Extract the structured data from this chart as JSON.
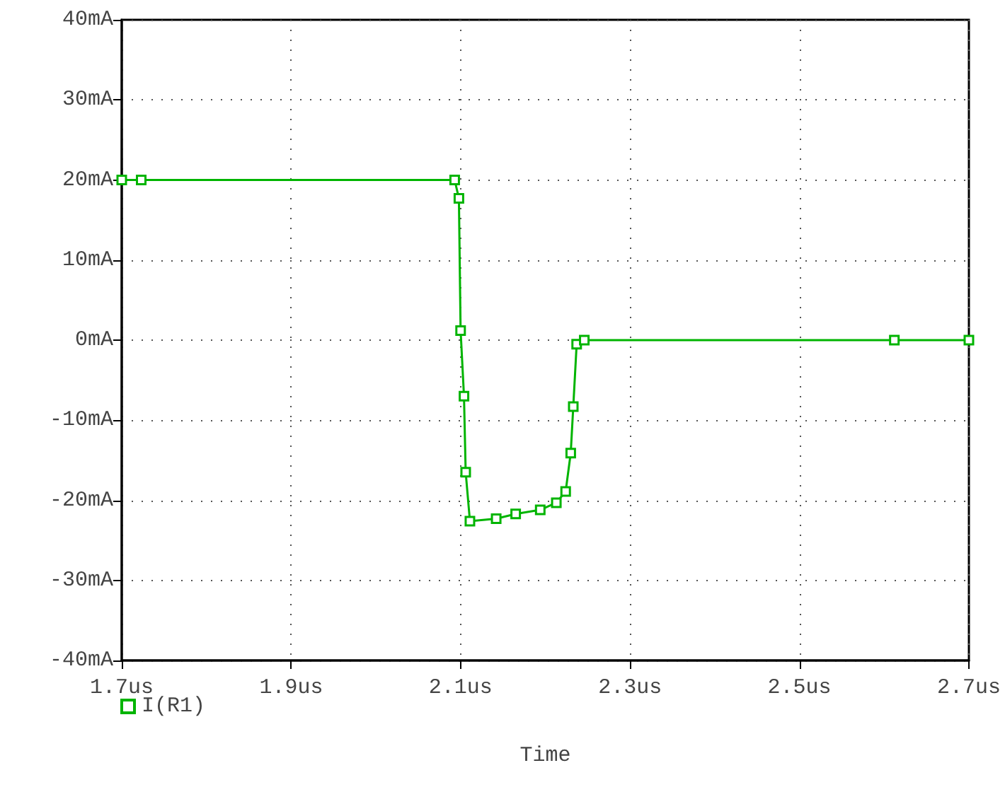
{
  "chart_data": {
    "type": "line",
    "xlabel": "Time",
    "x": [
      1.7,
      1.723,
      2.093,
      2.098,
      2.1,
      2.104,
      2.106,
      2.111,
      2.142,
      2.165,
      2.194,
      2.213,
      2.224,
      2.23,
      2.233,
      2.237,
      2.246,
      2.612,
      2.7
    ],
    "series": [
      {
        "name": "I(R1)",
        "color": "#00b400",
        "values": [
          20,
          20,
          20,
          17.7,
          1.2,
          -7,
          -16.5,
          -22.6,
          -22.3,
          -21.7,
          -21.2,
          -20.3,
          -18.9,
          -14.1,
          -8.3,
          -0.5,
          0,
          0,
          0
        ]
      }
    ],
    "xlim": [
      1.7,
      2.7
    ],
    "xticks": [
      {
        "value": 1.7,
        "label": "1.7us"
      },
      {
        "value": 1.9,
        "label": "1.9us"
      },
      {
        "value": 2.1,
        "label": "2.1us"
      },
      {
        "value": 2.3,
        "label": "2.3us"
      },
      {
        "value": 2.5,
        "label": "2.5us"
      },
      {
        "value": 2.7,
        "label": "2.7us"
      }
    ],
    "ylim": [
      -40,
      40
    ],
    "yticks": [
      {
        "value": -40,
        "label": "-40mA"
      },
      {
        "value": -30,
        "label": "-30mA"
      },
      {
        "value": -20,
        "label": "-20mA"
      },
      {
        "value": -10,
        "label": "-10mA"
      },
      {
        "value": 0,
        "label": "0mA"
      },
      {
        "value": 10,
        "label": "10mA"
      },
      {
        "value": 20,
        "label": "20mA"
      },
      {
        "value": 30,
        "label": "30mA"
      },
      {
        "value": 40,
        "label": "40mA"
      }
    ],
    "grid": true,
    "legend": "bottom left",
    "marker": "square",
    "line_style": "solid"
  }
}
